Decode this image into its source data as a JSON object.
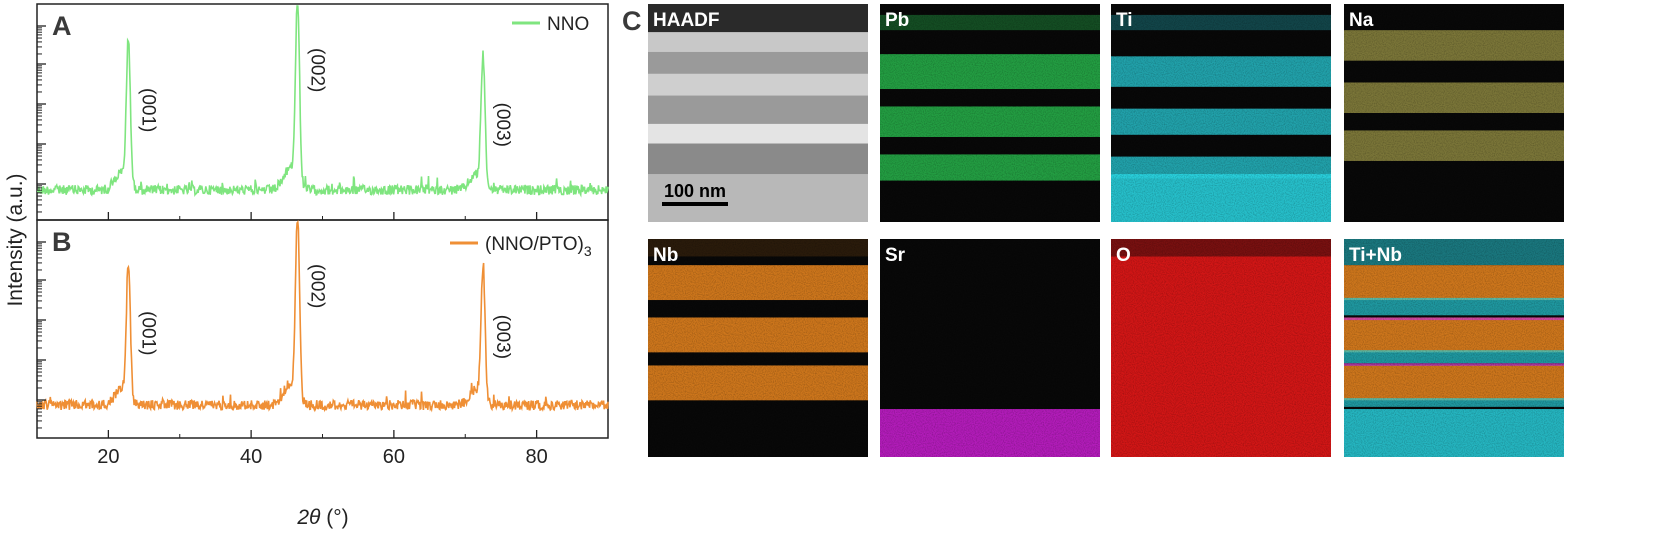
{
  "chart_data": [
    {
      "type": "line",
      "panel": "A",
      "series": [
        {
          "name": "NNO",
          "color": "#7fe57f"
        }
      ],
      "xlabel": "2θ (°)",
      "ylabel": "Intensity (a.u.)",
      "xlim": [
        10,
        90
      ],
      "y_scale": "log",
      "x_ticks": [
        20,
        40,
        60,
        80
      ],
      "peaks": [
        {
          "x": 22.8,
          "label": "(001)",
          "height": 0.78
        },
        {
          "x": 46.5,
          "label": "(002)",
          "height": 1.0
        },
        {
          "x": 72.5,
          "label": "(003)",
          "height": 0.7
        }
      ]
    },
    {
      "type": "line",
      "panel": "B",
      "series": [
        {
          "name": "(NNO/PTO)3",
          "color": "#ef8f35"
        }
      ],
      "xlabel": "2θ (°)",
      "ylabel": "Intensity (a.u.)",
      "xlim": [
        10,
        90
      ],
      "y_scale": "log",
      "x_ticks": [
        20,
        40,
        60,
        80
      ],
      "peaks": [
        {
          "x": 22.8,
          "label": "(001)",
          "height": 0.74
        },
        {
          "x": 46.5,
          "label": "(002)",
          "height": 1.0
        },
        {
          "x": 72.5,
          "label": "(003)",
          "height": 0.72
        }
      ]
    }
  ],
  "panels": {
    "a_letter": "A",
    "b_letter": "B",
    "c_letter": "C"
  },
  "legend_a": {
    "text": "NNO"
  },
  "legend_b": {
    "base": "(NNO/PTO)",
    "sub": "3"
  },
  "axes": {
    "xlabel_italic": "2θ",
    "xlabel_unit": " (°)",
    "ylabel": "Intensity (a.u.)"
  },
  "eds_maps": {
    "scale_bar": "100 nm",
    "tiles": [
      {
        "label": "HAADF",
        "color": "#d0d0d0"
      },
      {
        "label": "Pb",
        "color": "#2ccf55"
      },
      {
        "label": "Ti",
        "color": "#2ad4e0"
      },
      {
        "label": "Na",
        "color": "#d8d060"
      },
      {
        "label": "Nb",
        "color": "#f08a20"
      },
      {
        "label": "Sr",
        "color": "#d020d8"
      },
      {
        "label": "O",
        "color": "#e81818"
      },
      {
        "label": "Ti+Nb",
        "color": "#2ad4e0"
      }
    ]
  }
}
